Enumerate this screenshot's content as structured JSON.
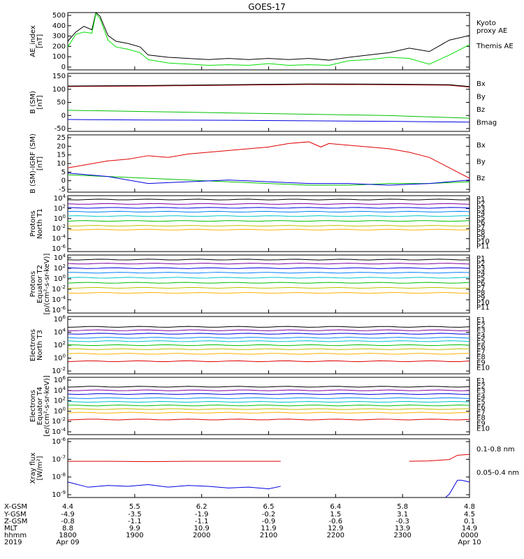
{
  "title": "GOES-17",
  "chart_data": [
    {
      "type": "line",
      "ylabel": [
        "AE_index",
        "[nT]"
      ],
      "yticks": [
        "500",
        "400",
        "300",
        "200",
        "100",
        "0"
      ],
      "ylim": [
        0,
        500
      ],
      "legend": [
        {
          "name": "Kyoto\nproxy AE",
          "color": "#00e000"
        },
        {
          "name": "Themis AE",
          "color": "#000000"
        }
      ],
      "series": [
        {
          "name": "Themis AE",
          "color": "#000000",
          "x": [
            0,
            2,
            4,
            6,
            7,
            8,
            10,
            12,
            15,
            18,
            20,
            25,
            30,
            35,
            40,
            45,
            50,
            55,
            60,
            65,
            70,
            75,
            80,
            85,
            90,
            95,
            100
          ],
          "y": [
            250,
            330,
            380,
            350,
            500,
            470,
            300,
            250,
            230,
            200,
            130,
            110,
            100,
            90,
            100,
            90,
            100,
            90,
            100,
            85,
            110,
            130,
            150,
            190,
            160,
            260,
            300
          ]
        },
        {
          "name": "Kyoto proxy AE",
          "color": "#00e000",
          "x": [
            0,
            2,
            4,
            6,
            7,
            8,
            10,
            12,
            15,
            18,
            20,
            25,
            30,
            35,
            40,
            45,
            50,
            55,
            60,
            65,
            70,
            75,
            80,
            85,
            90,
            95,
            100
          ],
          "y": [
            200,
            310,
            330,
            320,
            490,
            450,
            260,
            200,
            180,
            150,
            90,
            60,
            50,
            40,
            45,
            40,
            55,
            40,
            45,
            40,
            80,
            90,
            110,
            100,
            50,
            130,
            220
          ]
        }
      ]
    },
    {
      "type": "line",
      "ylabel": [
        "B (SM)",
        "[nT]"
      ],
      "yticks": [
        "150",
        "100",
        "50",
        "0",
        "-50"
      ],
      "ylim": [
        -60,
        160
      ],
      "legend": [
        {
          "name": "Bx",
          "color": "#0000e0"
        },
        {
          "name": "By",
          "color": "#00c000"
        },
        {
          "name": "Bz",
          "color": "#e00000"
        },
        {
          "name": "Bmag",
          "color": "#000000"
        }
      ],
      "series": [
        {
          "name": "Bz",
          "color": "#c00000",
          "x": [
            0,
            20,
            40,
            60,
            80,
            95,
            100
          ],
          "y": [
            110,
            112,
            115,
            118,
            117,
            115,
            108
          ]
        },
        {
          "name": "Bmag",
          "color": "#000000",
          "x": [
            0,
            20,
            40,
            60,
            80,
            95,
            100
          ],
          "y": [
            112,
            114,
            117,
            120,
            119,
            117,
            110
          ]
        },
        {
          "name": "By",
          "color": "#00c000",
          "x": [
            0,
            20,
            40,
            60,
            80,
            100
          ],
          "y": [
            20,
            15,
            10,
            5,
            0,
            -10
          ]
        },
        {
          "name": "Bx",
          "color": "#0000e0",
          "x": [
            0,
            20,
            40,
            60,
            80,
            100
          ],
          "y": [
            -15,
            -17,
            -18,
            -20,
            -22,
            -25
          ]
        }
      ]
    },
    {
      "type": "line",
      "ylabel": [
        "B (SM)-IGRF (SM)",
        "[nT]"
      ],
      "yticks": [
        "25",
        "20",
        "15",
        "10",
        "5",
        "0",
        "-5"
      ],
      "ylim": [
        -6,
        27
      ],
      "legend": [
        {
          "name": "Bx",
          "color": "#0000e0"
        },
        {
          "name": "By",
          "color": "#00c000"
        },
        {
          "name": "Bz",
          "color": "#e00000"
        }
      ],
      "series": [
        {
          "name": "Bz",
          "color": "#e00000",
          "x": [
            0,
            5,
            10,
            15,
            20,
            25,
            30,
            35,
            40,
            45,
            50,
            55,
            60,
            63,
            65,
            70,
            75,
            80,
            85,
            90,
            95,
            100
          ],
          "y": [
            8,
            10,
            12,
            13,
            15,
            14,
            16,
            17,
            18,
            19,
            20,
            22,
            23,
            20,
            22,
            21,
            20,
            19,
            17,
            14,
            8,
            2
          ]
        },
        {
          "name": "By",
          "color": "#00c000",
          "x": [
            0,
            10,
            20,
            30,
            40,
            50,
            60,
            70,
            80,
            90,
            100
          ],
          "y": [
            4,
            3,
            2,
            1,
            0,
            -1,
            -2,
            -2,
            -1,
            -1,
            0
          ]
        },
        {
          "name": "Bx",
          "color": "#0000e0",
          "x": [
            0,
            10,
            20,
            30,
            40,
            50,
            60,
            70,
            80,
            90,
            100
          ],
          "y": [
            5,
            3,
            -1,
            0,
            1,
            0,
            -1,
            -1,
            -2,
            -1,
            1
          ]
        }
      ]
    },
    {
      "type": "line",
      "ylabel": [
        "Protons",
        "North T1"
      ],
      "yticks": [
        "10^4",
        "10^2",
        "10^0",
        "10^-2",
        "10^-4",
        "10^-6"
      ],
      "ylim": [
        -7,
        4.5
      ],
      "legend": [
        {
          "name": "P1",
          "color": "#000000"
        },
        {
          "name": "P2",
          "color": "#8000a0"
        },
        {
          "name": "P3",
          "color": "#0000e0"
        },
        {
          "name": "P4",
          "color": "#0080ff"
        },
        {
          "name": "P5",
          "color": "#00c8c8"
        },
        {
          "name": "P6",
          "color": "#00c000"
        },
        {
          "name": "P7",
          "color": "#c0c000"
        },
        {
          "name": "P8",
          "color": "#ffb000"
        },
        {
          "name": "P9",
          "color": "#ff6000"
        },
        {
          "name": "P10",
          "color": "#e00000"
        },
        {
          "name": "P11",
          "color": "#b00000"
        }
      ],
      "series": [
        {
          "name": "P1",
          "color": "#000000",
          "y": 3.7
        },
        {
          "name": "P2",
          "color": "#8000a0",
          "y": 2.8
        },
        {
          "name": "P3",
          "color": "#0000e0",
          "y": 2.0
        },
        {
          "name": "P4",
          "color": "#0080ff",
          "y": 1.2
        },
        {
          "name": "P5",
          "color": "#00c8c8",
          "y": 0.3
        },
        {
          "name": "P6",
          "color": "#00c000",
          "y": -0.7
        },
        {
          "name": "P7",
          "color": "#c0c000",
          "y": -1.7
        },
        {
          "name": "P8",
          "color": "#ffb000",
          "y": -2.5
        }
      ]
    },
    {
      "type": "line",
      "ylabel": [
        "Protons",
        "Equator T2",
        "[p/(cm²-s-sr-keV)]"
      ],
      "yticks": [
        "10^4",
        "10^2",
        "10^0",
        "10^-2",
        "10^-4",
        "10^-6"
      ],
      "ylim": [
        -7,
        4.5
      ],
      "legend": [
        {
          "name": "P1",
          "color": "#000000"
        },
        {
          "name": "P2",
          "color": "#8000a0"
        },
        {
          "name": "P3",
          "color": "#0000e0"
        },
        {
          "name": "P4",
          "color": "#0080ff"
        },
        {
          "name": "P5",
          "color": "#00c8c8"
        },
        {
          "name": "P6",
          "color": "#00c000"
        },
        {
          "name": "P7",
          "color": "#c0c000"
        },
        {
          "name": "P8",
          "color": "#ffb000"
        },
        {
          "name": "P9",
          "color": "#ff6000"
        },
        {
          "name": "P10",
          "color": "#e00000"
        },
        {
          "name": "P11",
          "color": "#b00000"
        }
      ],
      "series": [
        {
          "name": "P1",
          "color": "#000000",
          "y": 3.6
        },
        {
          "name": "P2",
          "color": "#8000a0",
          "y": 2.8
        },
        {
          "name": "P3",
          "color": "#0000e0",
          "y": 1.9
        },
        {
          "name": "P4",
          "color": "#0080ff",
          "y": 1.0
        },
        {
          "name": "P5",
          "color": "#00c8c8",
          "y": 0.0
        },
        {
          "name": "P6",
          "color": "#00c000",
          "y": -1.0
        },
        {
          "name": "P7",
          "color": "#c0c000",
          "y": -2.0
        },
        {
          "name": "P8",
          "color": "#ffb000",
          "y": -3.0
        }
      ]
    },
    {
      "type": "line",
      "ylabel": [
        "Electrons",
        "North T3"
      ],
      "yticks": [
        "10^6",
        "10^4",
        "10^2",
        "10^0",
        "10^-2"
      ],
      "ylim": [
        -3.5,
        6.5
      ],
      "legend": [
        {
          "name": "E1",
          "color": "#000000"
        },
        {
          "name": "E2",
          "color": "#8000a0"
        },
        {
          "name": "E3",
          "color": "#0000e0"
        },
        {
          "name": "E4",
          "color": "#0080ff"
        },
        {
          "name": "E5",
          "color": "#00c8c8"
        },
        {
          "name": "E6",
          "color": "#00c000"
        },
        {
          "name": "E7",
          "color": "#c0c000"
        },
        {
          "name": "E8",
          "color": "#ffb000"
        },
        {
          "name": "E9",
          "color": "#e00000"
        },
        {
          "name": "E10",
          "color": "#b00000"
        }
      ],
      "series": [
        {
          "name": "E1",
          "color": "#000000",
          "y": 4.7
        },
        {
          "name": "E2",
          "color": "#8000a0",
          "y": 4.1
        },
        {
          "name": "E3",
          "color": "#0000e0",
          "y": 3.5
        },
        {
          "name": "E4",
          "color": "#0080ff",
          "y": 2.8
        },
        {
          "name": "E5",
          "color": "#00c8c8",
          "y": 2.2
        },
        {
          "name": "E6",
          "color": "#00c000",
          "y": 1.5
        },
        {
          "name": "E7",
          "color": "#c0c000",
          "y": 0.8
        },
        {
          "name": "E8",
          "color": "#ffb000",
          "y": 0.0
        },
        {
          "name": "E9",
          "color": "#e00000",
          "y": -1.3
        }
      ]
    },
    {
      "type": "line",
      "ylabel": [
        "Electrons",
        "Equator T4",
        "[e/(cm²-s-sr-keV)]"
      ],
      "yticks": [
        "10^6",
        "10^4",
        "10^2",
        "10^0",
        "10^-2",
        "10^-4"
      ],
      "ylim": [
        -4.5,
        6.5
      ],
      "legend": [
        {
          "name": "E1",
          "color": "#000000"
        },
        {
          "name": "E2",
          "color": "#8000a0"
        },
        {
          "name": "E3",
          "color": "#0000e0"
        },
        {
          "name": "E4",
          "color": "#0080ff"
        },
        {
          "name": "E5",
          "color": "#00c8c8"
        },
        {
          "name": "E6",
          "color": "#00c000"
        },
        {
          "name": "E7",
          "color": "#c0c000"
        },
        {
          "name": "E8",
          "color": "#ffb000"
        },
        {
          "name": "E9",
          "color": "#e00000"
        },
        {
          "name": "E10",
          "color": "#b00000"
        }
      ],
      "series": [
        {
          "name": "E1",
          "color": "#000000",
          "y": 4.7
        },
        {
          "name": "E2",
          "color": "#8000a0",
          "y": 4.0
        },
        {
          "name": "E3",
          "color": "#0000e0",
          "y": 3.3
        },
        {
          "name": "E4",
          "color": "#0080ff",
          "y": 2.5
        },
        {
          "name": "E5",
          "color": "#00c8c8",
          "y": 1.8
        },
        {
          "name": "E6",
          "color": "#00c000",
          "y": 1.1
        },
        {
          "name": "E7",
          "color": "#c0c000",
          "y": 0.4
        },
        {
          "name": "E8",
          "color": "#ffb000",
          "y": -0.3
        },
        {
          "name": "E9",
          "color": "#e00000",
          "y": -1.6
        }
      ]
    },
    {
      "type": "line",
      "ylabel": [
        "Xray flux",
        "[W/m²]"
      ],
      "yticks": [
        "10^-6",
        "10^-7",
        "10^-8",
        "10^-9"
      ],
      "ylim": [
        -9.2,
        -5.8
      ],
      "legend": [
        {
          "name": "0.1-0.8 nm",
          "color": "#e00000"
        },
        {
          "name": "0.05-0.4 nm",
          "color": "#0000e0"
        }
      ],
      "series": [
        {
          "name": "0.1-0.8 nm",
          "color": "#e00000",
          "segments": [
            {
              "x": [
                0,
                10,
                20,
                30,
                40,
                50,
                53
              ],
              "y": [
                -7.1,
                -7.1,
                -7.12,
                -7.1,
                -7.1,
                -7.1,
                -7.1
              ]
            },
            {
              "x": [
                85,
                90,
                95,
                97,
                100
              ],
              "y": [
                -7.1,
                -7.08,
                -7.0,
                -6.75,
                -6.7
              ]
            }
          ]
        },
        {
          "name": "0.05-0.4 nm",
          "color": "#0000e0",
          "segments": [
            {
              "x": [
                0,
                5,
                10,
                15,
                20,
                25,
                30,
                35,
                40,
                45,
                50,
                53
              ],
              "y": [
                -8.3,
                -8.6,
                -8.5,
                -8.55,
                -8.45,
                -8.6,
                -8.5,
                -8.55,
                -8.65,
                -8.6,
                -8.7,
                -8.55
              ]
            },
            {
              "x": [
                94,
                95,
                96,
                97,
                98,
                100
              ],
              "y": [
                -9.2,
                -9.0,
                -8.6,
                -8.2,
                -8.2,
                -8.3
              ]
            }
          ]
        }
      ]
    }
  ],
  "footer": {
    "row_labels": [
      "X-GSM",
      "Y-GSM",
      "Z-GSM",
      "MLT",
      "hhmm",
      "2019"
    ],
    "columns": [
      [
        "4.4",
        "-4.9",
        "-0.8",
        "8.8",
        "1800",
        "Apr 09"
      ],
      [
        "5.5",
        "-3.5",
        "-1.1",
        "9.9",
        "1900",
        ""
      ],
      [
        "6.2",
        "-1.9",
        "-1.1",
        "10.9",
        "2000",
        ""
      ],
      [
        "6.5",
        "-0.2",
        "-0.9",
        "11.9",
        "2100",
        ""
      ],
      [
        "6.4",
        "1.5",
        "-0.6",
        "12.9",
        "2200",
        ""
      ],
      [
        "5.8",
        "3.1",
        "-0.3",
        "13.9",
        "2300",
        ""
      ],
      [
        "4.8",
        "4.5",
        "0.1",
        "14.9",
        "0000",
        "Apr 10"
      ]
    ]
  }
}
